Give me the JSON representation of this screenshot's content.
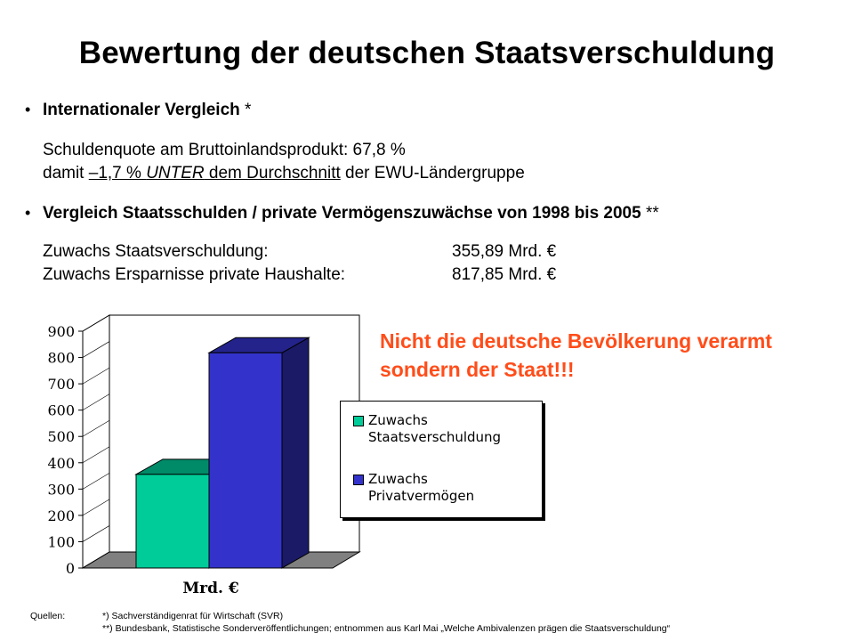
{
  "title": "Bewertung der deutschen Staatsverschuldung",
  "sections": [
    {
      "heading_bold": "Internationaler Vergleich",
      "heading_suffix": " *",
      "line1": "Schuldenquote am Bruttoinlandsprodukt: 67,8 %",
      "line2_pre": "damit ",
      "line2_underline_a": "–1,7 % ",
      "line2_italic": "UNTER",
      "line2_underline_b": " dem Durchschnitt",
      "line2_post": " der EWU-Ländergruppe"
    },
    {
      "heading_bold": "Vergleich Staatsschulden / private Vermögenszuwächse von 1998 bis 2005",
      "heading_suffix": " **",
      "rows": [
        {
          "label": "Zuwachs Staatsverschuldung:",
          "value": "355,89 Mrd. €"
        },
        {
          "label": "Zuwachs Ersparnisse private Haushalte:",
          "value": "817,85 Mrd. €"
        }
      ]
    }
  ],
  "callout": {
    "line1": "Nicht die deutsche Bevölkerung verarmt",
    "line2": "sondern der Staat!!!",
    "color": "#ff4d1a"
  },
  "chart_data": {
    "type": "bar",
    "style": "3d",
    "categories": [
      "Mrd. €"
    ],
    "series": [
      {
        "name": "Zuwachs\nStaatsverschuldung",
        "values": [
          355.89
        ],
        "color": "#00cc99"
      },
      {
        "name": "Zuwachs\nPrivatvermögen",
        "values": [
          817.85
        ],
        "color": "#3333cc"
      }
    ],
    "xlabel": "Mrd. €",
    "ylim": [
      0,
      900
    ],
    "yticks": [
      0,
      100,
      200,
      300,
      400,
      500,
      600,
      700,
      800,
      900
    ],
    "grid": false,
    "legend_position": "right"
  },
  "sources": {
    "label": "Quellen:",
    "line1": "*) Sachverständigenrat für Wirtschaft (SVR)",
    "line2": "**) Bundesbank, Statistische Sonderveröffentlichungen; entnommen aus Karl Mai „Welche Ambivalenzen prägen die Staatsverschuldung“"
  }
}
